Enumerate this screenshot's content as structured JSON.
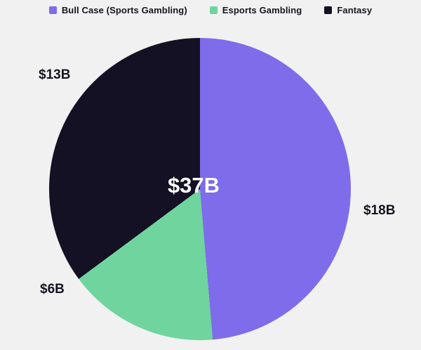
{
  "page": {
    "background_color": "#f2f1f1"
  },
  "chart_data": {
    "type": "pie",
    "title": "",
    "units": "billions USD",
    "direction": "clockwise",
    "start_angle_deg": 0,
    "center_total_label": "$37B",
    "center_total_value": 37,
    "legend_position": "top-center",
    "slices": [
      {
        "label": "Bull Case (Sports Gambling)",
        "value": 18,
        "display": "$18B",
        "color": "#7e6ceb"
      },
      {
        "label": "Esports Gambling",
        "value": 6,
        "display": "$6B",
        "color": "#70d49e"
      },
      {
        "label": "Fantasy",
        "value": 13,
        "display": "$13B",
        "color": "#131123"
      }
    ]
  }
}
